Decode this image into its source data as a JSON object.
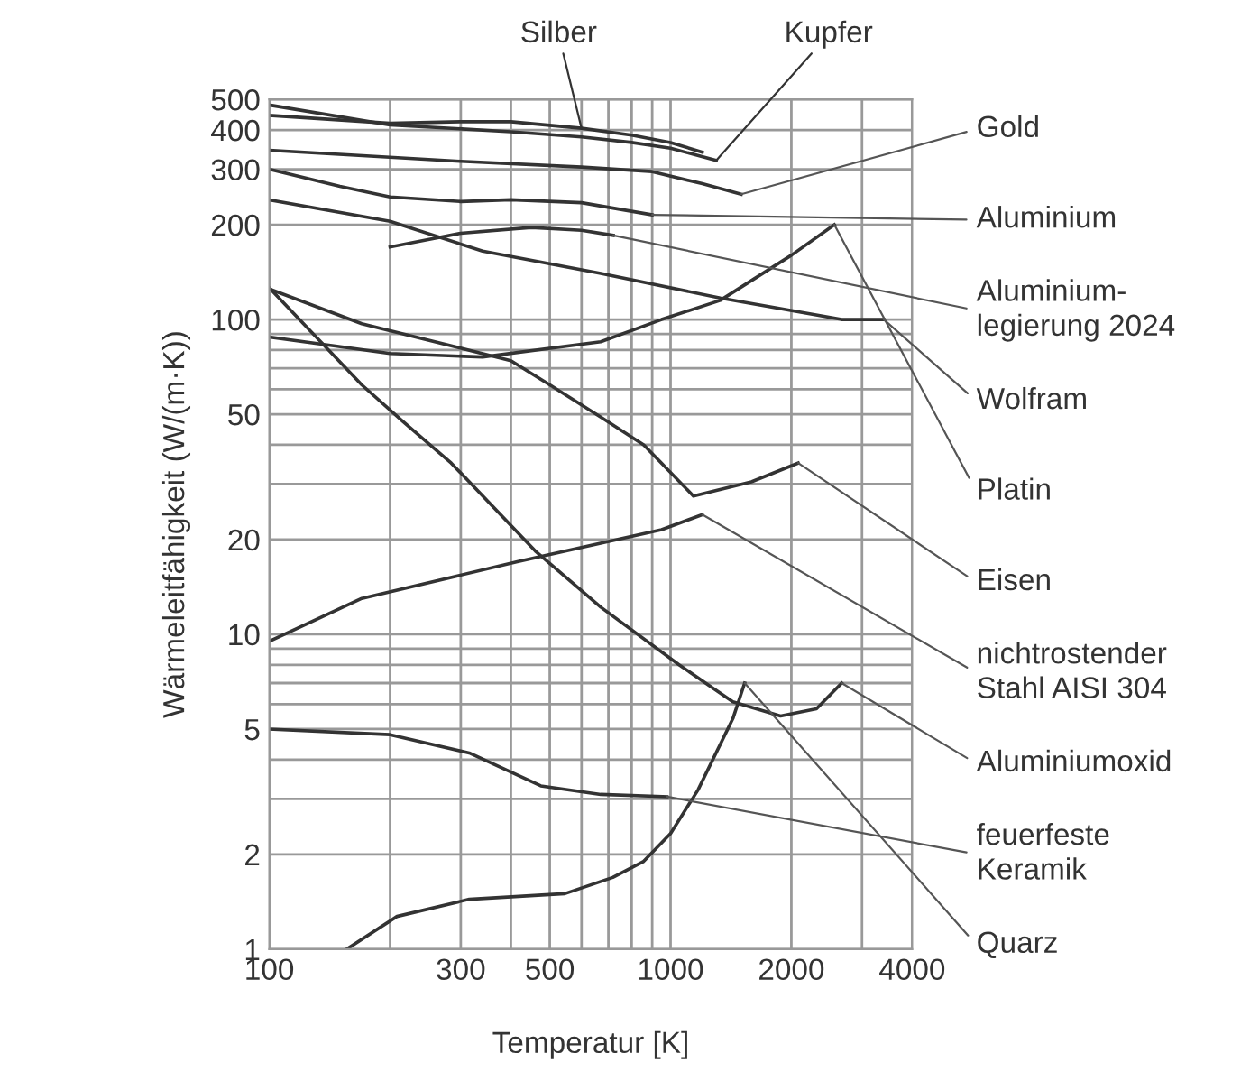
{
  "chart_data": {
    "type": "line",
    "xlabel": "Temperatur [K]",
    "ylabel": "Wärmeleitfähigkeit (W/(m·K))",
    "log": "xy",
    "grid": true,
    "legend": false,
    "xlim": [
      100,
      4000
    ],
    "ylim": [
      1,
      500
    ],
    "xticks": [
      100,
      {
        "value": 200,
        "label": null
      },
      300,
      {
        "value": 400,
        "label": null
      },
      500,
      {
        "value": 600,
        "label": null
      },
      {
        "value": 700,
        "label": null
      },
      {
        "value": 800,
        "label": null
      },
      {
        "value": 900,
        "label": null
      },
      1000,
      2000,
      {
        "value": 3000,
        "label": null
      },
      4000
    ],
    "yticks": [
      1,
      2,
      {
        "value": 3,
        "label": null
      },
      {
        "value": 4,
        "label": null
      },
      5,
      {
        "value": 6,
        "label": null
      },
      {
        "value": 7,
        "label": null
      },
      {
        "value": 8,
        "label": null
      },
      {
        "value": 9,
        "label": null
      },
      10,
      20,
      {
        "value": 30,
        "label": null
      },
      {
        "value": 40,
        "label": null
      },
      50,
      {
        "value": 60,
        "label": null
      },
      {
        "value": 70,
        "label": null
      },
      {
        "value": 80,
        "label": null
      },
      {
        "value": 90,
        "label": null
      },
      100,
      200,
      300,
      400,
      500
    ],
    "series": [
      {
        "name": "Silber",
        "color": "#333333",
        "x": [
          100,
          200,
          300,
          400,
          600,
          800,
          1000,
          1200
        ],
        "values": [
          445,
          420,
          425,
          425,
          405,
          385,
          365,
          340
        ]
      },
      {
        "name": "Kupfer",
        "color": "#333333",
        "x": [
          100,
          200,
          400,
          600,
          800,
          1000,
          1300
        ],
        "values": [
          480,
          415,
          395,
          380,
          365,
          350,
          320
        ]
      },
      {
        "name": "Gold",
        "color": "#333333",
        "x": [
          100,
          300,
          600,
          900,
          1200,
          1500
        ],
        "values": [
          345,
          318,
          305,
          295,
          270,
          250
        ]
      },
      {
        "name": "Aluminium",
        "color": "#333333",
        "x": [
          100,
          150,
          200,
          300,
          400,
          600,
          900
        ],
        "values": [
          300,
          265,
          245,
          237,
          240,
          235,
          215
        ]
      },
      {
        "name": "Aluminium-\nlegierung 2024",
        "color": "#333333",
        "x": [
          200,
          300,
          450,
          600,
          720
        ],
        "values": [
          170,
          188,
          196,
          192,
          185
        ]
      },
      {
        "name": "Wolfram",
        "color": "#333333",
        "x": [
          100,
          200,
          340,
          670,
          1330,
          2670,
          3400
        ],
        "values": [
          240,
          205,
          165,
          140,
          117,
          100,
          100
        ]
      },
      {
        "name": "Platin",
        "color": "#333333",
        "x": [
          100,
          200,
          340,
          670,
          950,
          1330,
          2000,
          2560
        ],
        "values": [
          88,
          78,
          76,
          85,
          100,
          115,
          160,
          200
        ]
      },
      {
        "name": "Eisen",
        "color": "#333333",
        "x": [
          100,
          170,
          400,
          500,
          670,
          857,
          1140,
          1590,
          2080
        ],
        "values": [
          125,
          97,
          74,
          62,
          49,
          40,
          27.5,
          30.5,
          35
        ]
      },
      {
        "name": "nichtrostender\nStahl AISI 304",
        "color": "#333333",
        "x": [
          100,
          170,
          415,
          950,
          1200
        ],
        "values": [
          9.5,
          13,
          17,
          21.5,
          24
        ]
      },
      {
        "name": "Aluminiumoxid",
        "color": "#333333",
        "x": [
          100,
          170,
          215,
          284,
          460,
          670,
          1050,
          1430,
          1880,
          2310,
          2670
        ],
        "values": [
          126,
          62,
          47.5,
          35,
          18.4,
          12.2,
          8,
          6.1,
          5.5,
          5.8,
          7
        ]
      },
      {
        "name": "feuerfeste\nKeramik",
        "color": "#333333",
        "x": [
          100,
          200,
          315,
          475,
          670,
          980
        ],
        "values": [
          5,
          4.8,
          4.2,
          3.3,
          3.1,
          3.05
        ]
      },
      {
        "name": "Quarz",
        "color": "#333333",
        "x": [
          156,
          208,
          315,
          545,
          718,
          857,
          1000,
          1170,
          1430,
          1530
        ],
        "values": [
          1,
          1.27,
          1.44,
          1.5,
          1.69,
          1.9,
          2.33,
          3.2,
          5.4,
          7
        ]
      }
    ]
  }
}
